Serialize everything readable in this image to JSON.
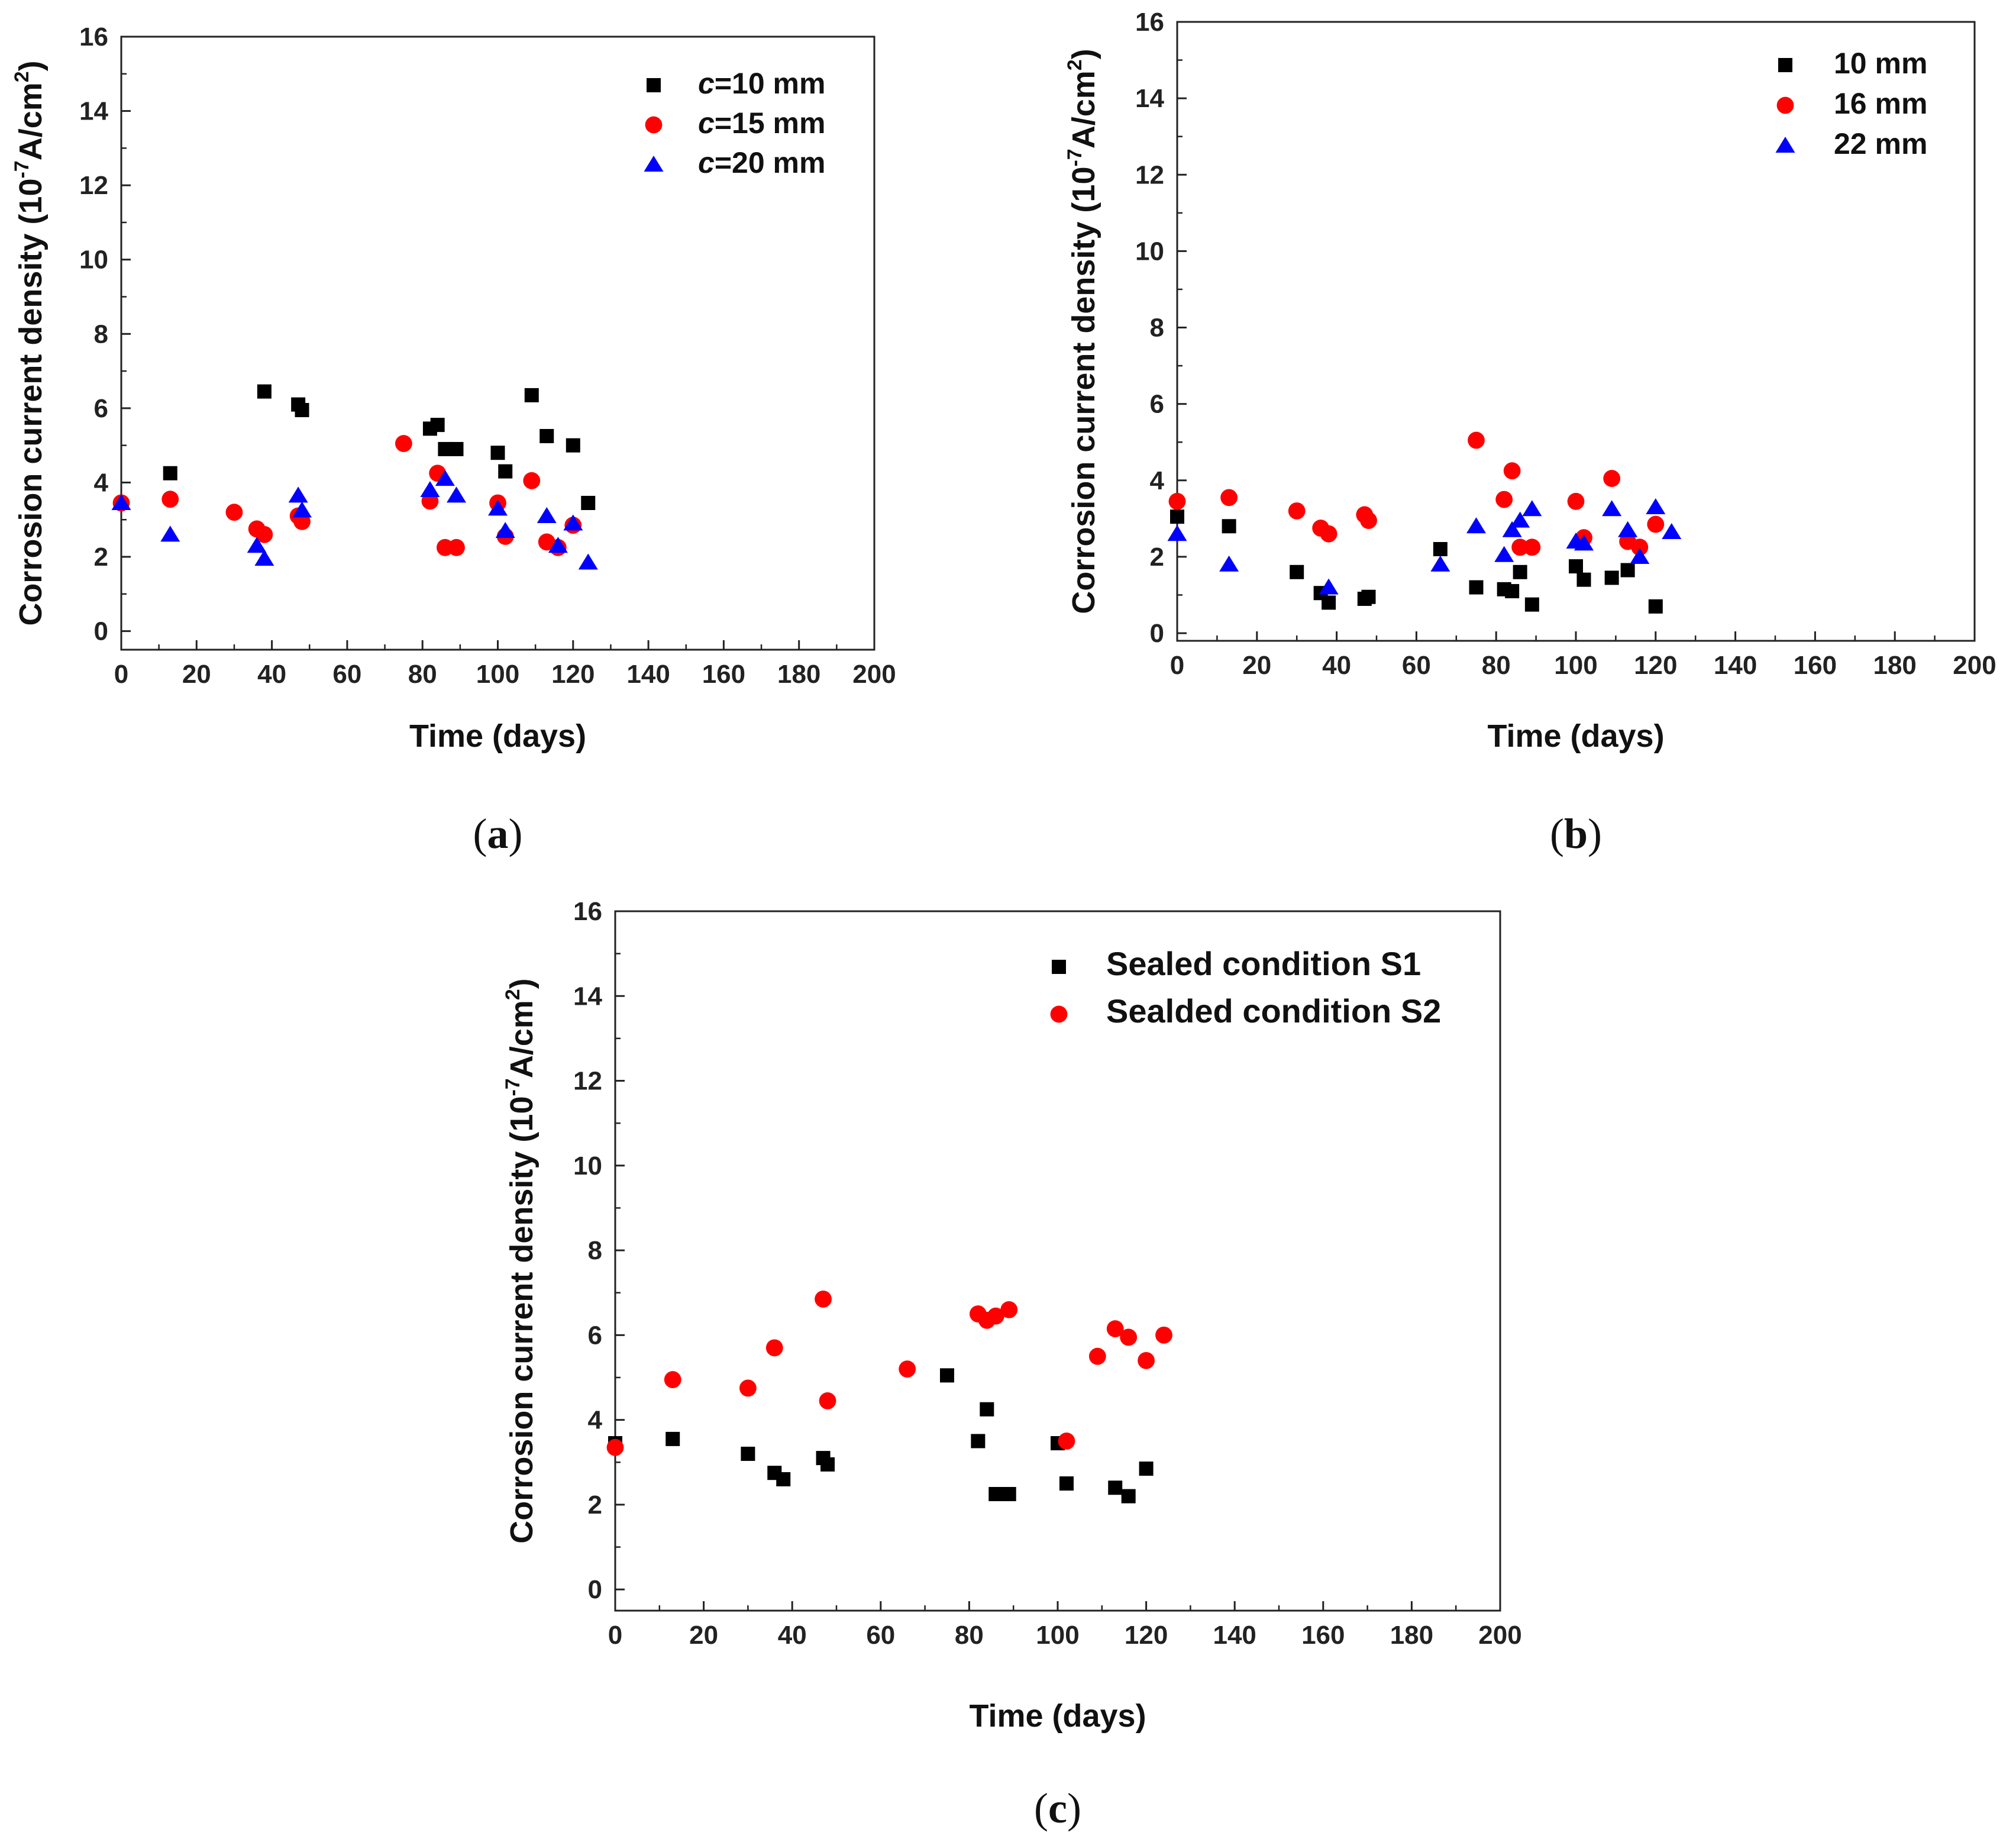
{
  "chart_data": [
    {
      "type": "scatter",
      "caption": "a",
      "title": "",
      "xlabel": "Time (days)",
      "ylabel": {
        "prefix": "Corrosion current density (10",
        "sup1": "-7",
        "middle": "A/cm",
        "sup2": "2",
        "suffix": ")"
      },
      "xlim": [
        0,
        200
      ],
      "ylim": [
        -0.5,
        16
      ],
      "xticks": [
        0,
        20,
        40,
        60,
        80,
        100,
        120,
        140,
        160,
        180,
        200
      ],
      "yticks": [
        0,
        2,
        4,
        6,
        8,
        10,
        12,
        14,
        16
      ],
      "legend_position": "top-right",
      "series": [
        {
          "name": "c=10 mm",
          "name_italic": "c",
          "name_rest": "=10 mm",
          "marker": "square",
          "color": "#000000",
          "x": [
            13,
            38,
            47,
            48,
            82,
            84,
            86,
            89,
            100,
            102,
            109,
            113,
            120,
            124
          ],
          "y": [
            4.25,
            6.45,
            6.1,
            5.95,
            5.45,
            5.55,
            4.9,
            4.9,
            4.8,
            4.3,
            6.35,
            5.25,
            5.0,
            3.45
          ]
        },
        {
          "name": "c=15 mm",
          "name_italic": "c",
          "name_rest": "=15 mm",
          "marker": "circle",
          "color": "#ff0000",
          "x": [
            0,
            13,
            30,
            36,
            38,
            47,
            48,
            75,
            82,
            84,
            86,
            89,
            100,
            102,
            109,
            113,
            116,
            120
          ],
          "y": [
            3.45,
            3.55,
            3.2,
            2.75,
            2.6,
            3.1,
            2.95,
            5.05,
            3.5,
            4.25,
            2.25,
            2.25,
            3.45,
            2.55,
            4.05,
            2.4,
            2.25,
            2.85
          ]
        },
        {
          "name": "c=20 mm",
          "name_italic": "c",
          "name_rest": "=20 mm",
          "marker": "triangle",
          "color": "#0000ff",
          "x": [
            0,
            13,
            36,
            38,
            47,
            48,
            82,
            86,
            89,
            100,
            102,
            113,
            116,
            120,
            124
          ],
          "y": [
            3.45,
            2.6,
            2.3,
            1.95,
            3.65,
            3.25,
            3.8,
            4.1,
            3.65,
            3.3,
            2.7,
            3.1,
            2.3,
            2.9,
            1.85
          ]
        }
      ]
    },
    {
      "type": "scatter",
      "caption": "b",
      "title": "",
      "xlabel": "Time (days)",
      "ylabel": {
        "prefix": "Corrosion current density (10",
        "sup1": "-7",
        "middle": "A/cm",
        "sup2": "2",
        "suffix": ")"
      },
      "xlim": [
        0,
        200
      ],
      "ylim": [
        -0.2,
        16
      ],
      "xticks": [
        0,
        20,
        40,
        60,
        80,
        100,
        120,
        140,
        160,
        180,
        200
      ],
      "yticks": [
        0,
        2,
        4,
        6,
        8,
        10,
        12,
        14,
        16
      ],
      "legend_position": "top-right",
      "series": [
        {
          "name": "10 mm",
          "marker": "square",
          "color": "#000000",
          "x": [
            0,
            13,
            30,
            36,
            38,
            47,
            48,
            66,
            75,
            82,
            84,
            86,
            89,
            100,
            102,
            109,
            113,
            120
          ],
          "y": [
            3.05,
            2.8,
            1.6,
            1.05,
            0.8,
            0.9,
            0.95,
            2.2,
            1.2,
            1.15,
            1.1,
            1.6,
            0.75,
            1.75,
            1.4,
            1.45,
            1.65,
            0.7
          ]
        },
        {
          "name": "16 mm",
          "marker": "circle",
          "color": "#ff0000",
          "x": [
            0,
            13,
            30,
            36,
            38,
            47,
            48,
            75,
            82,
            84,
            86,
            89,
            100,
            102,
            109,
            113,
            116,
            120
          ],
          "y": [
            3.45,
            3.55,
            3.2,
            2.75,
            2.6,
            3.1,
            2.95,
            5.05,
            3.5,
            4.25,
            2.25,
            2.25,
            3.45,
            2.5,
            4.05,
            2.4,
            2.25,
            2.85
          ]
        },
        {
          "name": "22 mm",
          "marker": "triangle",
          "color": "#0000ff",
          "x": [
            0,
            13,
            38,
            66,
            75,
            82,
            84,
            86,
            89,
            100,
            102,
            109,
            113,
            116,
            120,
            124
          ],
          "y": [
            2.6,
            1.8,
            1.2,
            1.8,
            2.8,
            2.05,
            2.7,
            2.95,
            3.25,
            2.4,
            2.35,
            3.25,
            2.7,
            2.0,
            3.3,
            2.65
          ]
        }
      ]
    },
    {
      "type": "scatter",
      "caption": "c",
      "title": "",
      "xlabel": "Time (days)",
      "ylabel": {
        "prefix": "Corrosion current density (10",
        "sup1": "-7",
        "middle": "A/cm",
        "sup2": "2",
        "suffix": ")"
      },
      "xlim": [
        0,
        200
      ],
      "ylim": [
        -0.5,
        16
      ],
      "xticks": [
        0,
        20,
        40,
        60,
        80,
        100,
        120,
        140,
        160,
        180,
        200
      ],
      "yticks": [
        0,
        2,
        4,
        6,
        8,
        10,
        12,
        14,
        16
      ],
      "legend_position": "top-right",
      "series": [
        {
          "name": "Sealed condition S1",
          "marker": "square",
          "color": "#000000",
          "x": [
            0,
            13,
            30,
            36,
            38,
            47,
            48,
            75,
            82,
            84,
            86,
            89,
            100,
            102,
            113,
            116,
            120
          ],
          "y": [
            3.45,
            3.55,
            3.2,
            2.75,
            2.6,
            3.1,
            2.95,
            5.05,
            3.5,
            4.25,
            2.25,
            2.25,
            3.45,
            2.5,
            2.4,
            2.2,
            2.85
          ]
        },
        {
          "name": "Sealded condition S2",
          "marker": "circle",
          "color": "#ff0000",
          "x": [
            0,
            13,
            30,
            36,
            47,
            48,
            66,
            82,
            84,
            86,
            89,
            102,
            109,
            113,
            116,
            120,
            124
          ],
          "y": [
            3.35,
            4.95,
            4.75,
            5.7,
            6.85,
            4.45,
            5.2,
            6.5,
            6.35,
            6.45,
            6.6,
            3.5,
            5.5,
            6.15,
            5.95,
            5.4,
            6.0
          ]
        }
      ]
    }
  ]
}
